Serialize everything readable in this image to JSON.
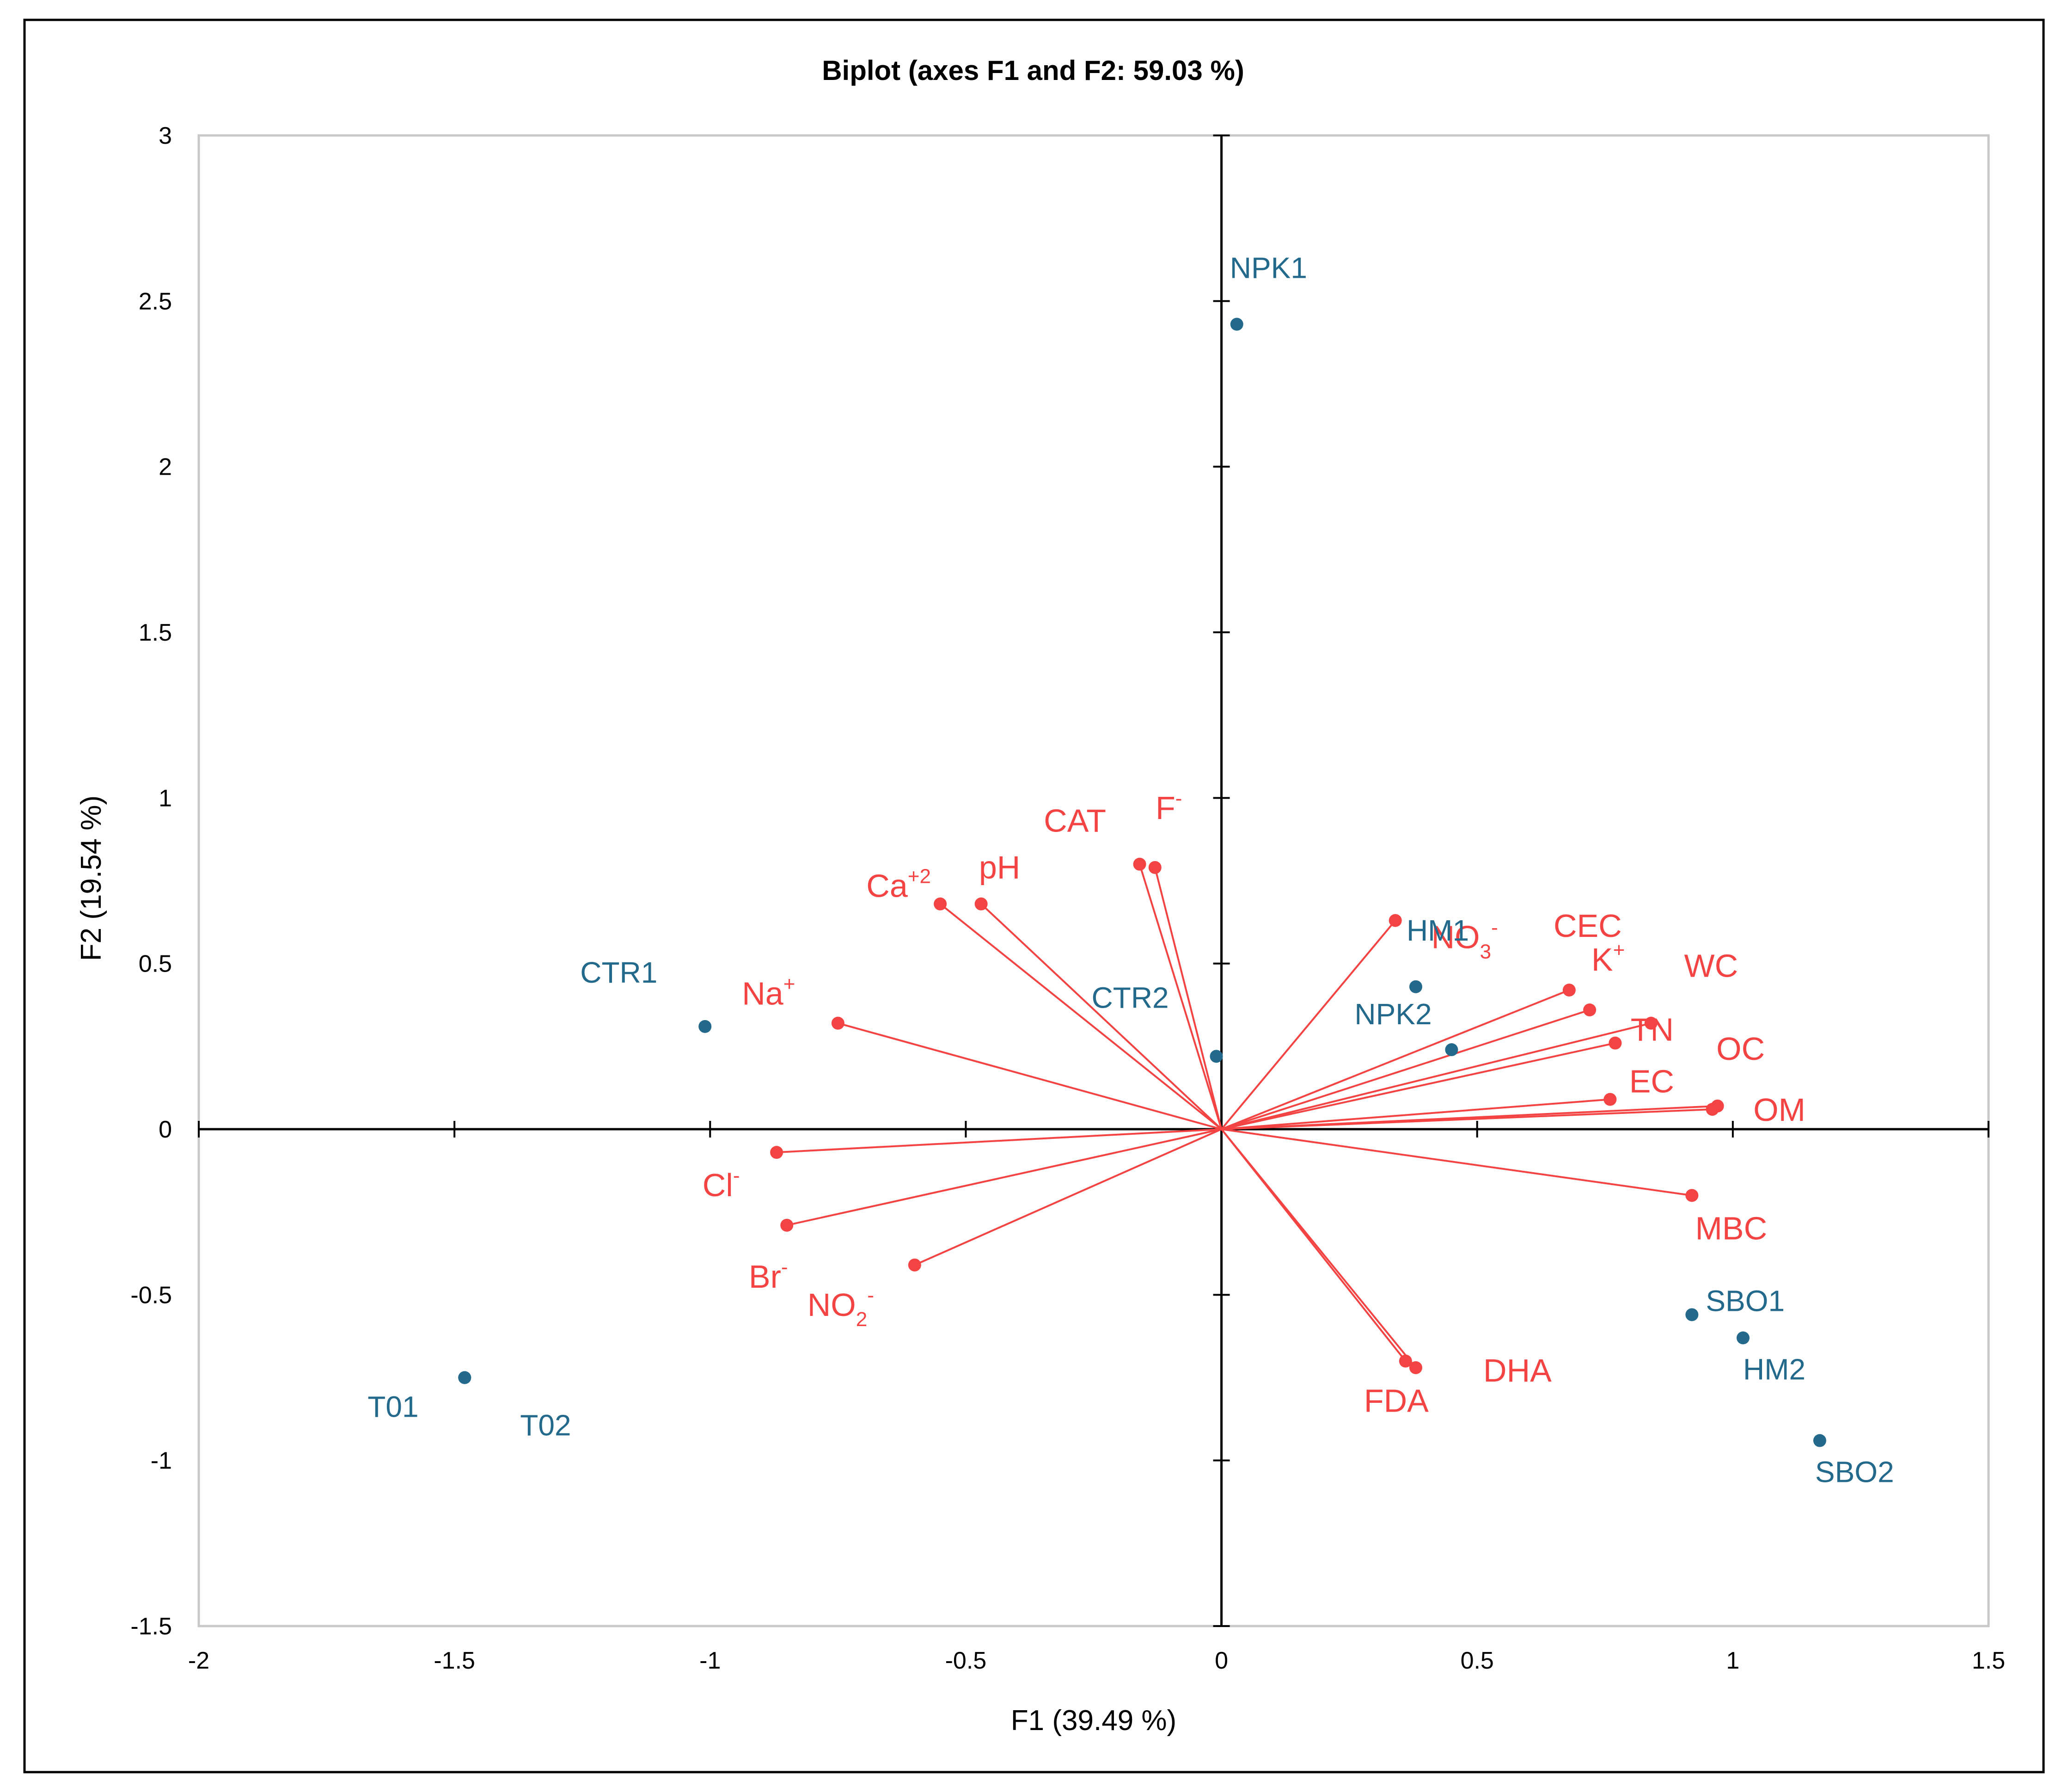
{
  "chart_data": {
    "type": "scatter",
    "title": "Biplot (axes F1 and F2: 59.03 %)",
    "xlabel": "F1 (39.49 %)",
    "ylabel": "F2 (19.54 %)",
    "xlim": [
      -2,
      1.5
    ],
    "ylim": [
      -1.5,
      3
    ],
    "xticks": [
      -2,
      -1.5,
      -1,
      -0.5,
      0,
      0.5,
      1,
      1.5
    ],
    "yticks": [
      -1.5,
      -1,
      -0.5,
      0,
      0.5,
      1,
      1.5,
      2,
      2.5,
      3
    ],
    "grid": false,
    "colors": {
      "variables": "#f44343",
      "observations": "#23698b",
      "axis": "#000000",
      "frame": "#c8c8c8"
    },
    "variables": [
      {
        "name": "Ca",
        "sup": "+2",
        "x": -0.55,
        "y": 0.68
      },
      {
        "name": "pH",
        "x": -0.47,
        "y": 0.68
      },
      {
        "name": "CAT",
        "x": -0.16,
        "y": 0.8
      },
      {
        "name": "F",
        "sup": "-",
        "x": -0.13,
        "y": 0.79
      },
      {
        "name": "NO",
        "sub": "3",
        "sup": "-",
        "x": 0.34,
        "y": 0.63
      },
      {
        "name": "CEC",
        "x": 0.68,
        "y": 0.42
      },
      {
        "name": "K",
        "sup": "+",
        "x": 0.72,
        "y": 0.36
      },
      {
        "name": "TN",
        "x": 0.77,
        "y": 0.26
      },
      {
        "name": "WC",
        "x": 0.84,
        "y": 0.32
      },
      {
        "name": "OC",
        "x": 0.97,
        "y": 0.07
      },
      {
        "name": "EC",
        "x": 0.76,
        "y": 0.09
      },
      {
        "name": "OM",
        "x": 0.96,
        "y": 0.06
      },
      {
        "name": "MBC",
        "x": 0.92,
        "y": -0.2
      },
      {
        "name": "DHA",
        "x": 0.38,
        "y": -0.72
      },
      {
        "name": "FDA",
        "x": 0.36,
        "y": -0.7
      },
      {
        "name": "NO",
        "sub": "2",
        "sup": "-",
        "x": -0.6,
        "y": -0.41
      },
      {
        "name": "Br",
        "sup": "-",
        "x": -0.85,
        "y": -0.29
      },
      {
        "name": "Cl",
        "sup": "-",
        "x": -0.87,
        "y": -0.07
      },
      {
        "name": "Na",
        "sup": "+",
        "x": -0.75,
        "y": 0.32
      }
    ],
    "observations": [
      {
        "name": "NPK1",
        "x": 0.03,
        "y": 2.43
      },
      {
        "name": "HM1",
        "x": 0.38,
        "y": 0.43
      },
      {
        "name": "NPK2",
        "x": 0.45,
        "y": 0.24
      },
      {
        "name": "CTR1",
        "x": -1.01,
        "y": 0.31
      },
      {
        "name": "CTR2",
        "x": -0.01,
        "y": 0.22
      },
      {
        "name": "SBO1",
        "x": 0.92,
        "y": -0.56
      },
      {
        "name": "HM2",
        "x": 1.02,
        "y": -0.63
      },
      {
        "name": "SBO2",
        "x": 1.17,
        "y": -0.94
      },
      {
        "name": "T01",
        "x": -1.48,
        "y": -0.75
      },
      {
        "name": "T02",
        "x": -1.48,
        "y": -0.75
      }
    ]
  }
}
